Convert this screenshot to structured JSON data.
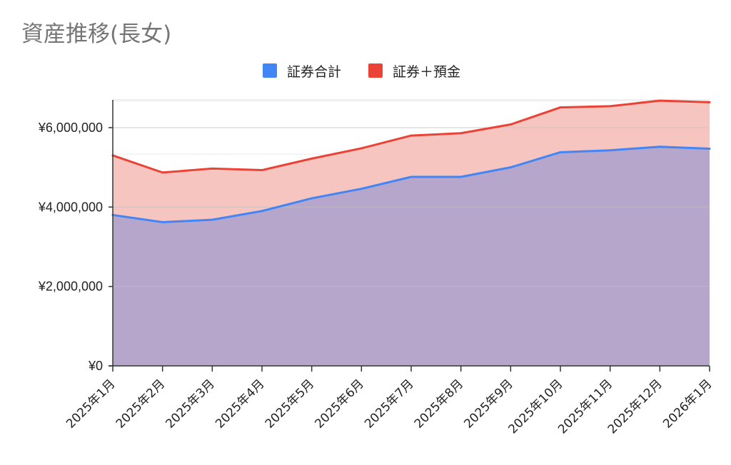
{
  "chart_data": {
    "type": "area",
    "title": "資産推移(長女)",
    "xlabel": "",
    "ylabel": "",
    "categories": [
      "2025年1月",
      "2025年2月",
      "2025年3月",
      "2025年4月",
      "2025年5月",
      "2025年6月",
      "2025年7月",
      "2025年8月",
      "2025年9月",
      "2025年10月",
      "2025年11月",
      "2025年12月",
      "2026年1月"
    ],
    "series": [
      {
        "name": "証券合計",
        "color": "#4285f4",
        "fill": "#b7a6cc",
        "values": [
          3800000,
          3620000,
          3680000,
          3900000,
          4220000,
          4460000,
          4760000,
          4760000,
          5000000,
          5380000,
          5430000,
          5520000,
          5470000
        ]
      },
      {
        "name": "証券＋預金",
        "color": "#ea4335",
        "fill": "#f7c5c0",
        "values": [
          5300000,
          4870000,
          4970000,
          4930000,
          5220000,
          5480000,
          5800000,
          5860000,
          6080000,
          6510000,
          6540000,
          6680000,
          6640000
        ]
      }
    ],
    "ylim": [
      0,
      6700000
    ],
    "y_ticks": [
      {
        "value": 0,
        "label": "¥0"
      },
      {
        "value": 2000000,
        "label": "¥2,000,000"
      },
      {
        "value": 4000000,
        "label": "¥4,000,000"
      },
      {
        "value": 6000000,
        "label": "¥6,000,000"
      }
    ],
    "y_minor_step": 666666.67,
    "grid": true,
    "legend_position": "top-center"
  }
}
